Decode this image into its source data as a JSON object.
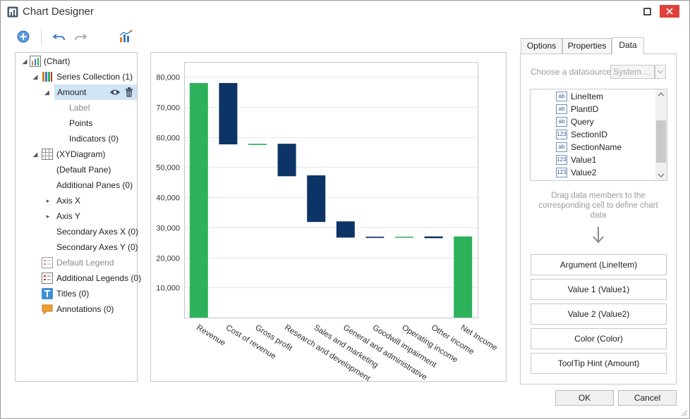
{
  "window": {
    "title": "Chart Designer"
  },
  "toolbar": {
    "add": "add-icon",
    "undo": "undo-icon",
    "redo": "redo-icon",
    "wizard": "chart-wizard-icon"
  },
  "tree": {
    "items": [
      {
        "label": "(Chart)"
      },
      {
        "label": "Series Collection (1)"
      },
      {
        "label": "Amount"
      },
      {
        "label": "Label"
      },
      {
        "label": "Points"
      },
      {
        "label": "Indicators (0)"
      },
      {
        "label": "(XYDiagram)"
      },
      {
        "label": "(Default Pane)"
      },
      {
        "label": "Additional Panes (0)"
      },
      {
        "label": "Axis X"
      },
      {
        "label": "Axis Y"
      },
      {
        "label": "Secondary Axes X (0)"
      },
      {
        "label": "Secondary Axes Y (0)"
      },
      {
        "label": "Default Legend"
      },
      {
        "label": "Additional Legends (0)"
      },
      {
        "label": "Titles (0)"
      },
      {
        "label": "Annotations (0)"
      }
    ]
  },
  "tabs": [
    {
      "label": "Options"
    },
    {
      "label": "Properties"
    },
    {
      "label": "Data"
    }
  ],
  "data_tab": {
    "datasource_label": "Choose a datasource:",
    "datasource_value": "System....",
    "fields": [
      {
        "name": "LineItem",
        "type": "ab"
      },
      {
        "name": "PlantID",
        "type": "ab"
      },
      {
        "name": "Query",
        "type": "ab"
      },
      {
        "name": "SectionID",
        "type": "123"
      },
      {
        "name": "SectionName",
        "type": "ab"
      },
      {
        "name": "Value1",
        "type": "123"
      },
      {
        "name": "Value2",
        "type": "123"
      }
    ],
    "hint": "Drag data members to the corresponding cell to define chart data",
    "mappings": [
      {
        "label": "Argument (LineItem)"
      },
      {
        "label": "Value 1 (Value1)"
      },
      {
        "label": "Value 2 (Value2)"
      },
      {
        "label": "Color (Color)"
      },
      {
        "label": "ToolTip Hint (Amount)"
      }
    ]
  },
  "buttons": {
    "ok": "OK",
    "cancel": "Cancel"
  },
  "colors": {
    "positive": "#2db25c",
    "negative": "#0c3466",
    "selection": "#cfe4f5",
    "close": "#e0413b"
  },
  "chart_data": {
    "type": "bar",
    "subtype": "waterfall",
    "categories": [
      "Revenue",
      "Cost of revenue",
      "Gross profit",
      "Research and development",
      "Sales and marketing",
      "General and administrative",
      "Goodwill impairment",
      "Operating income",
      "Other income",
      "Net Income"
    ],
    "ranges": [
      {
        "low": 0,
        "high": 78000,
        "kind": "total"
      },
      {
        "low": 57600,
        "high": 78000,
        "kind": "decrease"
      },
      {
        "low": 57400,
        "high": 57800,
        "kind": "total"
      },
      {
        "low": 47000,
        "high": 57800,
        "kind": "decrease"
      },
      {
        "low": 31800,
        "high": 47300,
        "kind": "decrease"
      },
      {
        "low": 26600,
        "high": 32000,
        "kind": "decrease"
      },
      {
        "low": 26500,
        "high": 26900,
        "kind": "decrease"
      },
      {
        "low": 26600,
        "high": 26900,
        "kind": "total"
      },
      {
        "low": 26400,
        "high": 27000,
        "kind": "decrease"
      },
      {
        "low": 0,
        "high": 27000,
        "kind": "total"
      }
    ],
    "yticks": [
      10000,
      20000,
      30000,
      40000,
      50000,
      60000,
      70000,
      80000
    ],
    "ytick_labels": [
      "10,000",
      "20,000",
      "30,000",
      "40,000",
      "50,000",
      "60,000",
      "70,000",
      "80,000"
    ],
    "ylim": [
      0,
      85000
    ],
    "grid": true,
    "legend": "none"
  }
}
